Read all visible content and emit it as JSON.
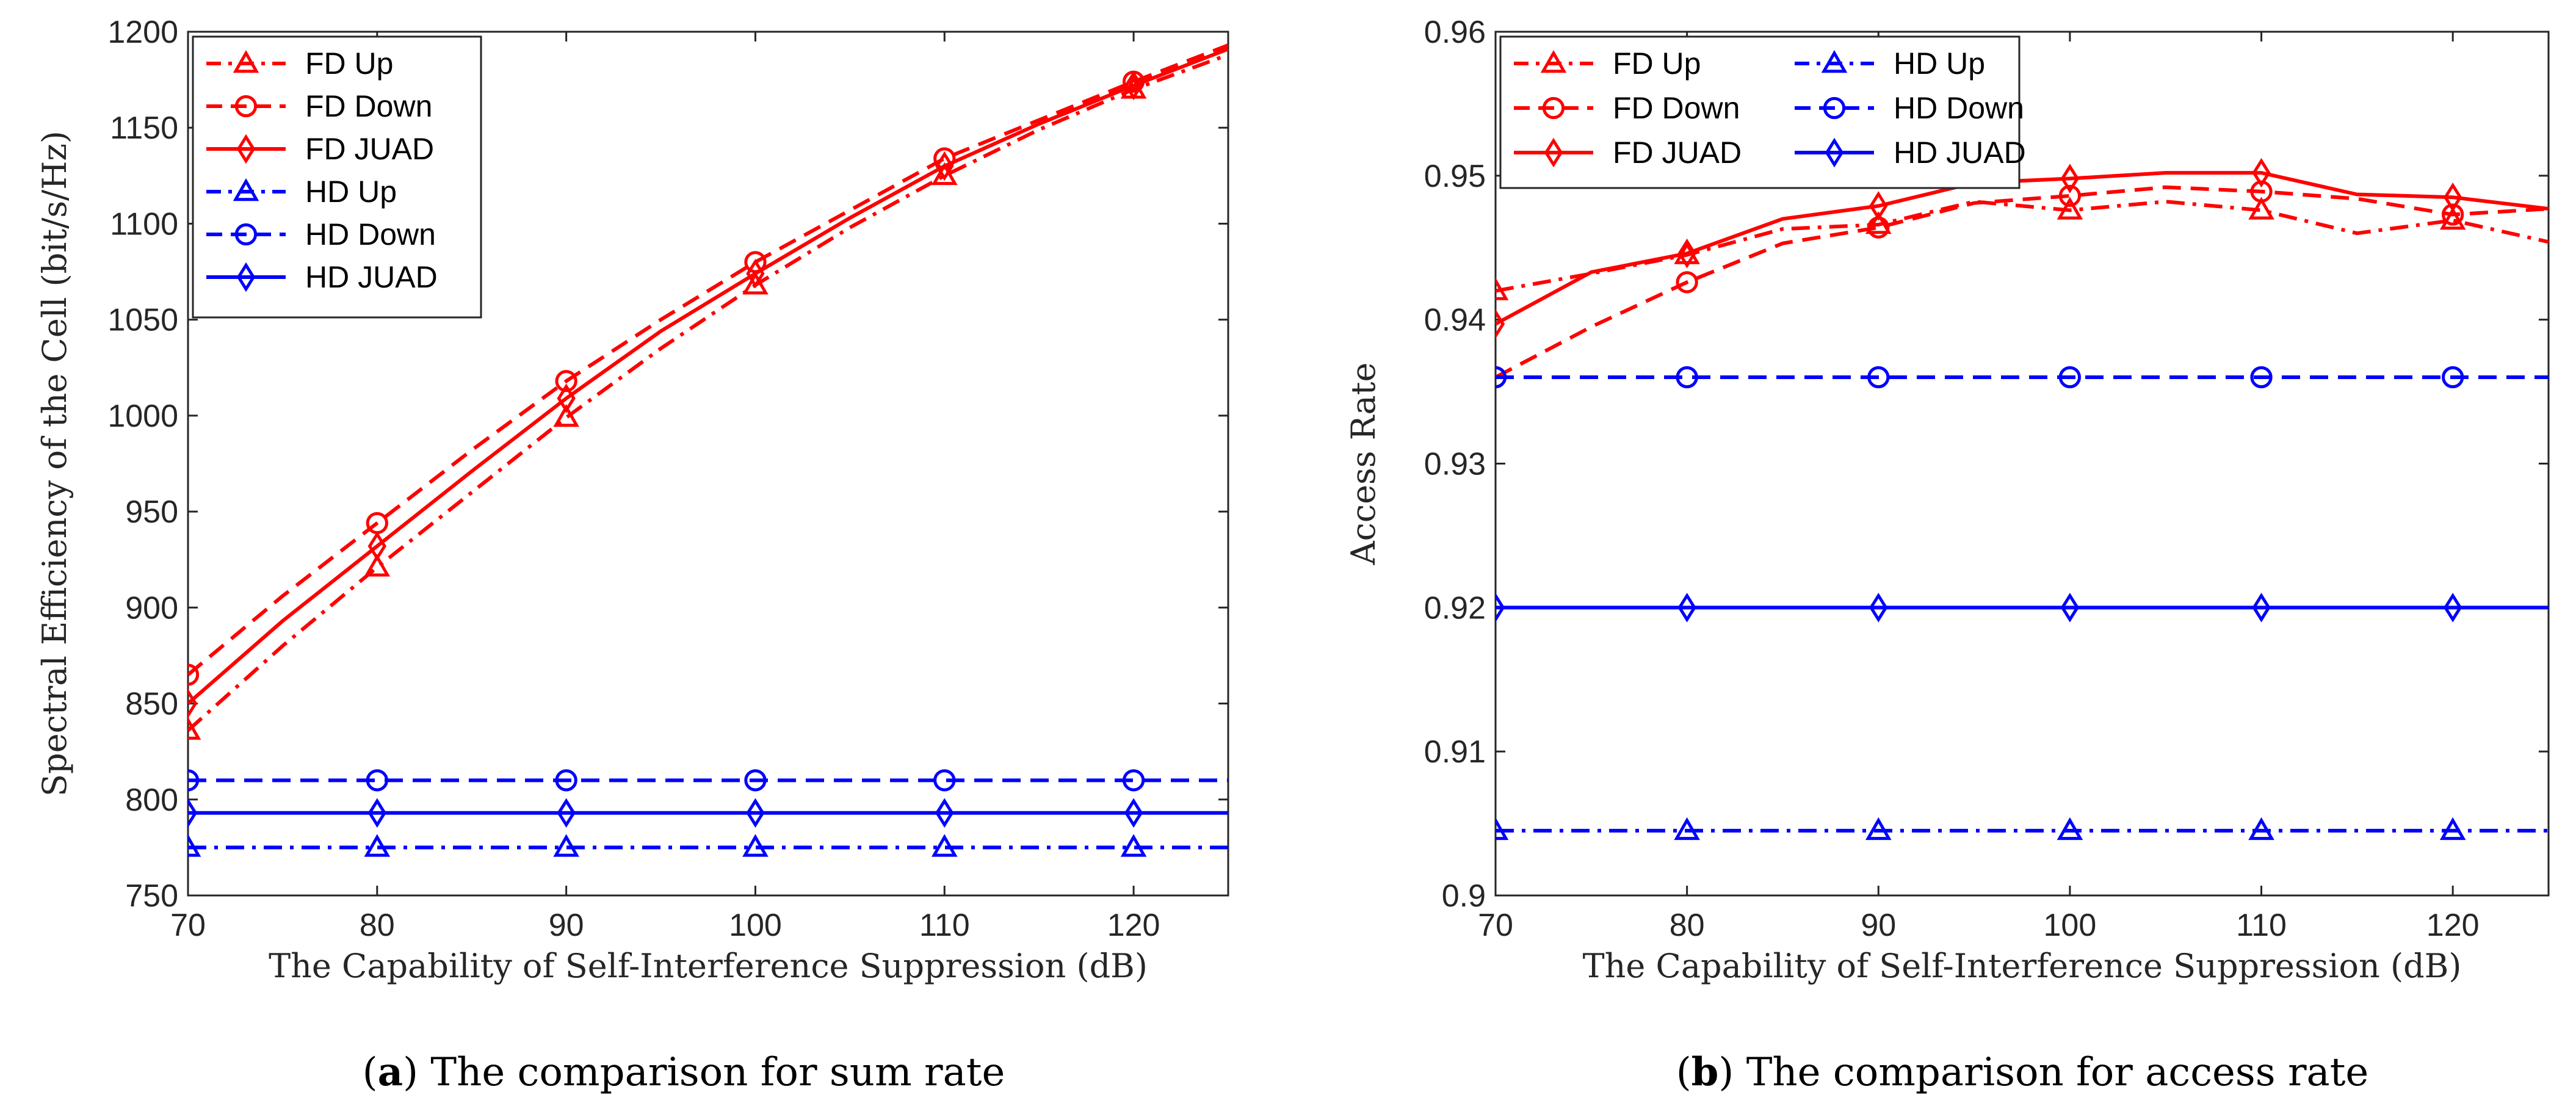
{
  "colors": {
    "fd": "#ff0000",
    "hd": "#0000ff",
    "axis": "#262626"
  },
  "chart_data": [
    {
      "type": "line",
      "title": "",
      "caption": {
        "letter": "a",
        "text": "The comparison for sum rate"
      },
      "xlabel": "The Capability of Self-Interference Suppression (dB)",
      "ylabel": "Spectral Efficiency of the Cell (bit/s/Hz)",
      "xlim": [
        70,
        125
      ],
      "ylim": [
        750,
        1200
      ],
      "xticks": [
        "70",
        "80",
        "90",
        "100",
        "110",
        "120"
      ],
      "yticks": [
        "750",
        "800",
        "850",
        "900",
        "950",
        "1000",
        "1050",
        "1100",
        "1150",
        "1200"
      ],
      "legend_position": "top-left",
      "series": [
        {
          "name": "FD Up",
          "color": "#ff0000",
          "line": "dashdot",
          "marker": "triangle",
          "x": [
            70,
            75,
            80,
            85,
            90,
            95,
            100,
            105,
            110,
            115,
            120,
            125
          ],
          "y": [
            836,
            880,
            921,
            960,
            999,
            1035,
            1068,
            1098,
            1125,
            1149,
            1170,
            1188
          ]
        },
        {
          "name": "FD Down",
          "color": "#ff0000",
          "line": "dashed",
          "marker": "circle",
          "x": [
            70,
            75,
            80,
            85,
            90,
            95,
            100,
            105,
            110,
            115,
            120,
            125
          ],
          "y": [
            865,
            906,
            944,
            982,
            1018,
            1050,
            1080,
            1107,
            1134,
            1154,
            1174,
            1193
          ]
        },
        {
          "name": "FD JUAD",
          "color": "#ff0000",
          "line": "solid",
          "marker": "diamond",
          "x": [
            70,
            75,
            80,
            85,
            90,
            95,
            100,
            105,
            110,
            115,
            120,
            125
          ],
          "y": [
            850,
            893,
            932,
            971,
            1009,
            1044,
            1074,
            1103,
            1130,
            1152,
            1172,
            1191
          ]
        },
        {
          "name": "HD Up",
          "color": "#0000ff",
          "line": "dashdot",
          "marker": "triangle",
          "x": [
            70,
            80,
            90,
            100,
            110,
            120,
            125
          ],
          "y": [
            775,
            775,
            775,
            775,
            775,
            775,
            775
          ]
        },
        {
          "name": "HD Down",
          "color": "#0000ff",
          "line": "dashed",
          "marker": "circle",
          "x": [
            70,
            80,
            90,
            100,
            110,
            120,
            125
          ],
          "y": [
            810,
            810,
            810,
            810,
            810,
            810,
            810
          ]
        },
        {
          "name": "HD JUAD",
          "color": "#0000ff",
          "line": "solid",
          "marker": "diamond",
          "x": [
            70,
            80,
            90,
            100,
            110,
            120,
            125
          ],
          "y": [
            793,
            793,
            793,
            793,
            793,
            793,
            793
          ]
        }
      ]
    },
    {
      "type": "line",
      "title": "",
      "caption": {
        "letter": "b",
        "text": "The comparison for access rate"
      },
      "xlabel": "The Capability of Self-Interference Suppression (dB)",
      "ylabel": "Access Rate",
      "xlim": [
        70,
        125
      ],
      "ylim": [
        0.9,
        0.96
      ],
      "xticks": [
        "70",
        "80",
        "90",
        "100",
        "110",
        "120"
      ],
      "yticks": [
        "0.9",
        "0.91",
        "0.92",
        "0.93",
        "0.94",
        "0.95",
        "0.96"
      ],
      "legend_position": "top-left",
      "series": [
        {
          "name": "FD Up",
          "color": "#ff0000",
          "line": "dashdot",
          "marker": "triangle",
          "x": [
            70,
            75,
            80,
            85,
            90,
            95,
            100,
            105,
            110,
            115,
            120,
            125
          ],
          "y": [
            0.942,
            0.9432,
            0.9445,
            0.9463,
            0.9466,
            0.9482,
            0.9476,
            0.9482,
            0.9476,
            0.946,
            0.9469,
            0.9454
          ]
        },
        {
          "name": "FD Down",
          "color": "#ff0000",
          "line": "dashed",
          "marker": "circle",
          "x": [
            70,
            75,
            80,
            85,
            90,
            95,
            100,
            105,
            110,
            115,
            120,
            125
          ],
          "y": [
            0.936,
            0.9395,
            0.9426,
            0.9453,
            0.9464,
            0.9481,
            0.9486,
            0.9492,
            0.9489,
            0.9484,
            0.9473,
            0.9477
          ]
        },
        {
          "name": "FD JUAD",
          "color": "#ff0000",
          "line": "solid",
          "marker": "diamond",
          "x": [
            70,
            75,
            80,
            85,
            90,
            95,
            100,
            105,
            110,
            115,
            120,
            125
          ],
          "y": [
            0.9397,
            0.9433,
            0.9446,
            0.947,
            0.9479,
            0.9495,
            0.9498,
            0.9502,
            0.9502,
            0.9487,
            0.9485,
            0.9477
          ]
        },
        {
          "name": "HD Up",
          "color": "#0000ff",
          "line": "dashdot",
          "marker": "triangle",
          "x": [
            70,
            80,
            90,
            100,
            110,
            120,
            125
          ],
          "y": [
            0.9045,
            0.9045,
            0.9045,
            0.9045,
            0.9045,
            0.9045,
            0.9045
          ]
        },
        {
          "name": "HD Down",
          "color": "#0000ff",
          "line": "dashed",
          "marker": "circle",
          "x": [
            70,
            80,
            90,
            100,
            110,
            120,
            125
          ],
          "y": [
            0.936,
            0.936,
            0.936,
            0.936,
            0.936,
            0.936,
            0.936
          ]
        },
        {
          "name": "HD JUAD",
          "color": "#0000ff",
          "line": "solid",
          "marker": "diamond",
          "x": [
            70,
            80,
            90,
            100,
            110,
            120,
            125
          ],
          "y": [
            0.92,
            0.92,
            0.92,
            0.92,
            0.92,
            0.92,
            0.92
          ]
        }
      ]
    }
  ]
}
